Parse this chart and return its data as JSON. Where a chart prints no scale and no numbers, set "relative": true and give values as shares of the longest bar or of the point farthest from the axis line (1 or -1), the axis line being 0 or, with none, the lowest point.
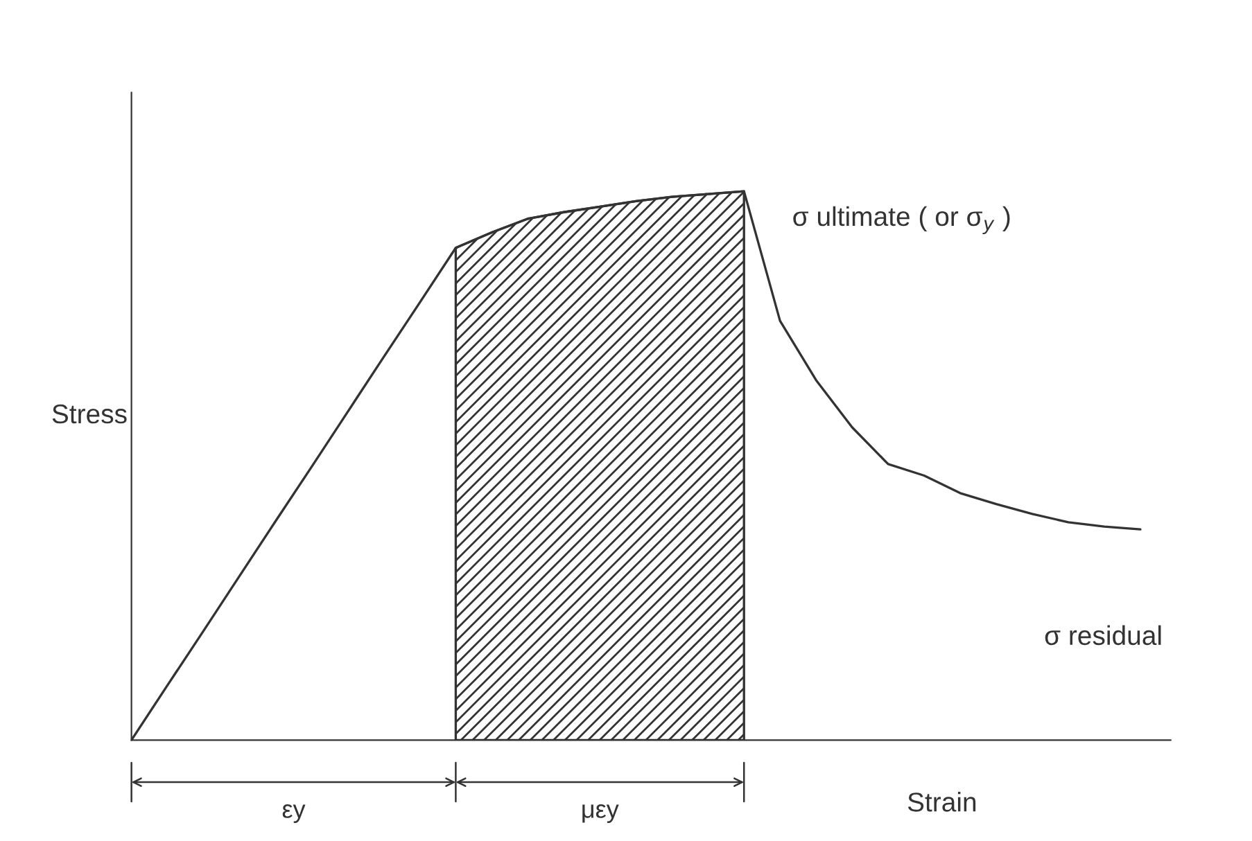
{
  "chart_data": {
    "type": "line",
    "relative": true,
    "xlabel": "Strain",
    "ylabel": "Stress",
    "grid": false,
    "legend": false,
    "marker": "none",
    "line_style": "solid",
    "categories": [
      null,
      null,
      null,
      null,
      null,
      null,
      null,
      null,
      null,
      null,
      null,
      null,
      null,
      null,
      null,
      null,
      null,
      null,
      null,
      null,
      null,
      null,
      null,
      null,
      null,
      null,
      null,
      null,
      null
    ],
    "series": [
      {
        "color": "#333333",
        "values": [
          0,
          0.1,
          0.199,
          0.299,
          0.399,
          0.498,
          0.598,
          0.698,
          0.797,
          0.897,
          0.925,
          0.95,
          0.962,
          0.972,
          0.982,
          0.99,
          0.995,
          1.0,
          0.764,
          0.656,
          0.57,
          0.503,
          0.482,
          0.45,
          0.43,
          0.412,
          0.397,
          0.389,
          0.384
        ]
      },
      {
        "type": "area",
        "color": "#333333",
        "values": [
          null,
          null,
          null,
          null,
          null,
          null,
          null,
          null,
          null,
          0.897,
          0.925,
          0.95,
          0.962,
          0.972,
          0.982,
          0.99,
          0.995,
          1.0,
          null,
          null,
          null,
          null,
          null,
          null,
          null,
          null,
          null,
          null,
          null
        ]
      }
    ],
    "annotations": [
      "σ ultimate ( or σ$_{y}$ )",
      "σ residual",
      "εy",
      "μεy"
    ]
  }
}
